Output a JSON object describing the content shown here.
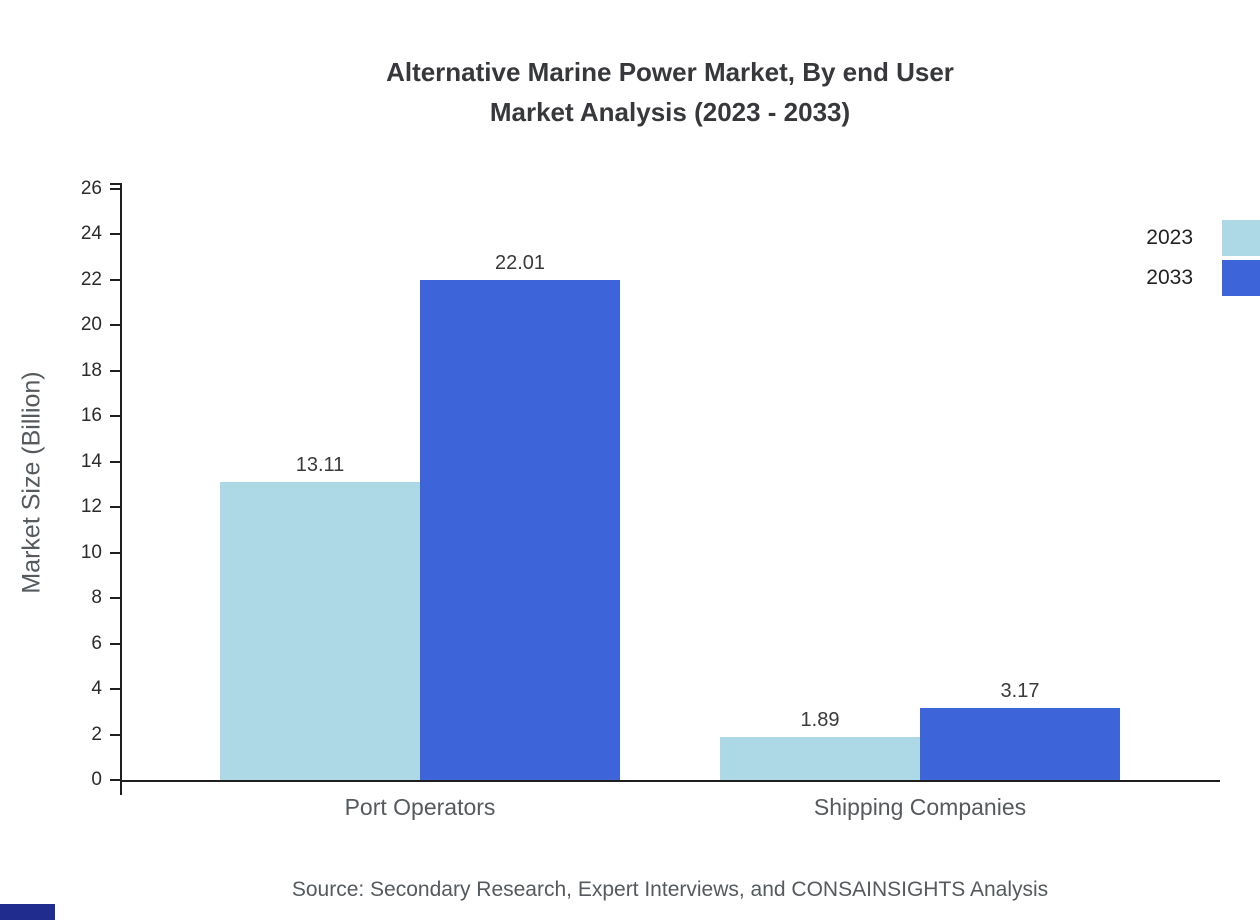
{
  "title": {
    "line1": "Alternative Marine Power Market, By end User",
    "line2": "Market Analysis (2023 - 2033)"
  },
  "chart_data": {
    "type": "bar",
    "title": "Alternative Marine Power Market, By end User Market Analysis (2023 - 2033)",
    "categories": [
      "Port Operators",
      "Shipping Companies"
    ],
    "series": [
      {
        "name": "2023",
        "color": "#add8e6",
        "values": [
          13.11,
          1.89
        ]
      },
      {
        "name": "2033",
        "color": "#3e64d9",
        "values": [
          22.01,
          3.17
        ]
      }
    ],
    "xlabel": "",
    "ylabel": "Market Size (Billion)",
    "ylim": [
      0,
      26
    ],
    "ytick_step": 2,
    "grid": false,
    "legend_position": "top-right",
    "value_label_format": "2-decimals"
  },
  "source": "Source: Secondary Research, Expert Interviews, and CONSAINSIGHTS Analysis",
  "accent": {
    "corner_color": "#202d8e"
  }
}
